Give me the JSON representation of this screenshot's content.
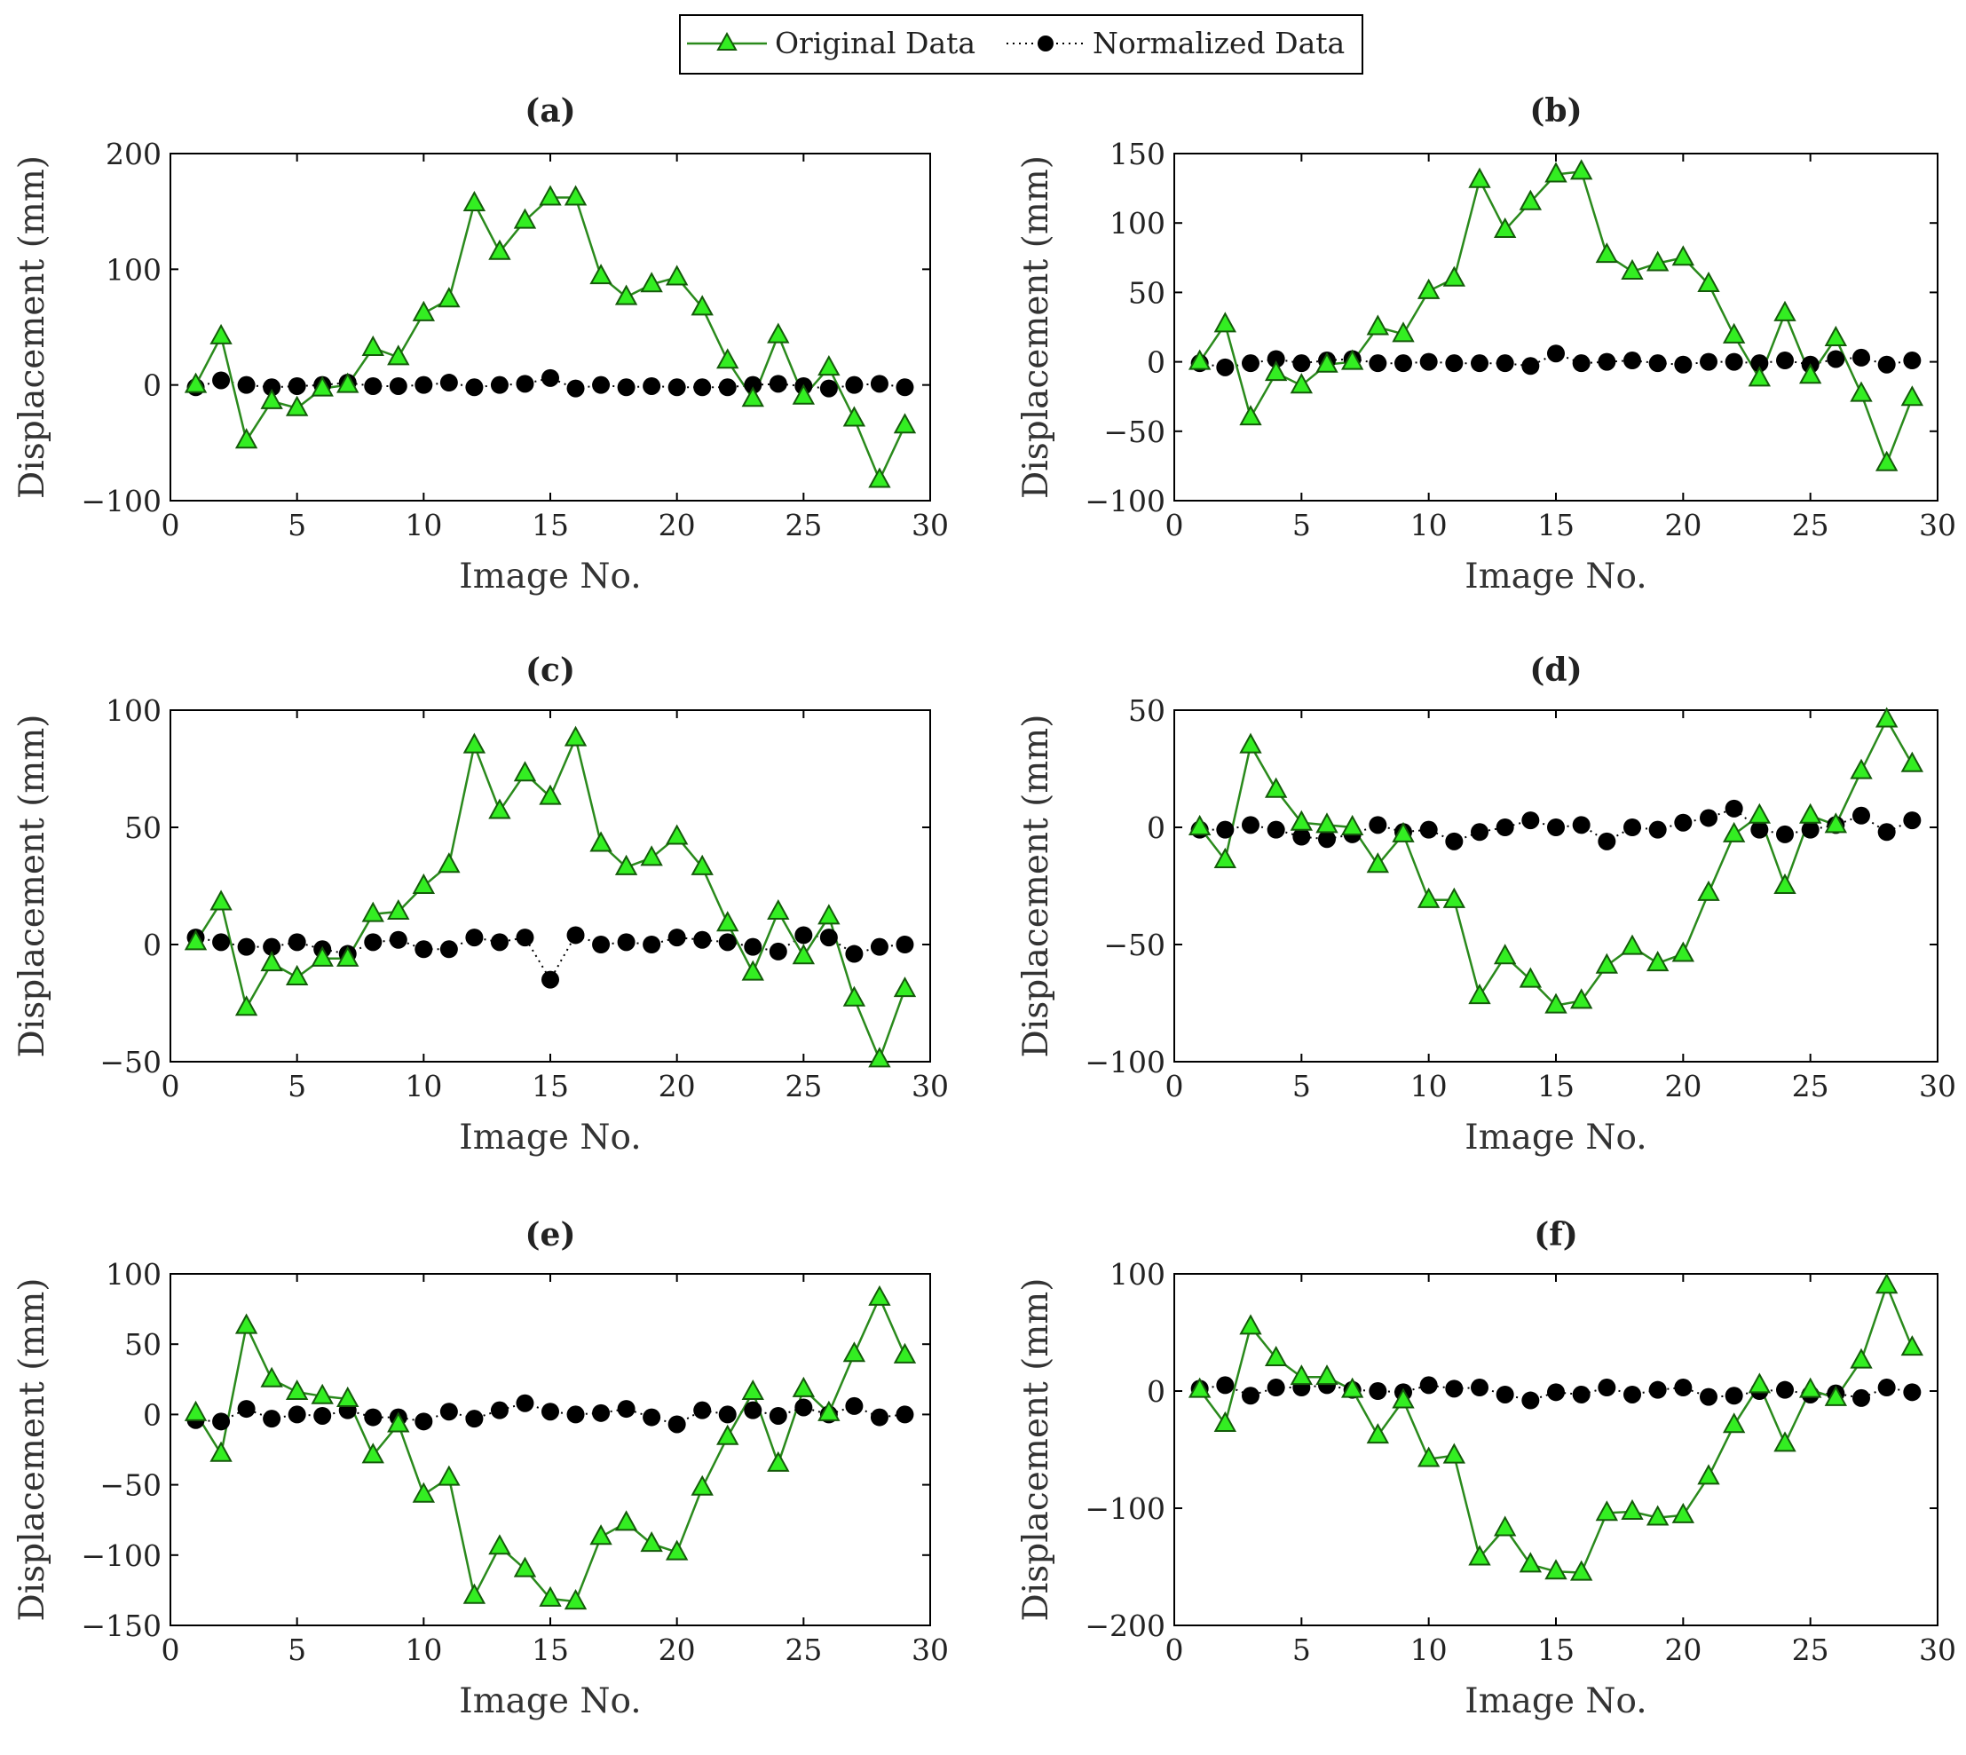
{
  "legend": {
    "original_label": "Original Data",
    "normalized_label": "Normalized Data"
  },
  "colors": {
    "original_line": "#2a8a1c",
    "original_marker_fill": "#33ee22",
    "original_marker_stroke": "#145a0a",
    "normalized": "#000000",
    "axis": "#000000"
  },
  "chart_data": [
    {
      "type": "line",
      "title": "(a)",
      "xlabel": "Image No.",
      "ylabel": "Displacement (mm)",
      "xlim": [
        0,
        30
      ],
      "ylim": [
        -100,
        200
      ],
      "xticks": [
        0,
        5,
        10,
        15,
        20,
        25,
        30
      ],
      "yticks": [
        -100,
        0,
        100,
        200
      ],
      "x": [
        1,
        2,
        3,
        4,
        5,
        6,
        7,
        8,
        9,
        10,
        11,
        12,
        13,
        14,
        15,
        16,
        17,
        18,
        19,
        20,
        21,
        22,
        23,
        24,
        25,
        26,
        27,
        28,
        29
      ],
      "series": [
        {
          "name": "Original Data",
          "values": [
            0,
            42,
            -48,
            -14,
            -20,
            -3,
            0,
            32,
            24,
            62,
            74,
            157,
            115,
            142,
            162,
            162,
            94,
            76,
            87,
            93,
            67,
            21,
            -12,
            43,
            -10,
            15,
            -29,
            -82,
            -35
          ]
        },
        {
          "name": "Normalized Data",
          "values": [
            -2,
            4,
            0,
            -2,
            -1,
            0,
            2,
            -1,
            -1,
            0,
            2,
            -2,
            0,
            1,
            6,
            -3,
            0,
            -2,
            -1,
            -2,
            -2,
            -2,
            0,
            1,
            -1,
            -3,
            0,
            1,
            -2
          ]
        }
      ]
    },
    {
      "type": "line",
      "title": "(b)",
      "xlabel": "Image No.",
      "ylabel": "Displacement (mm)",
      "xlim": [
        0,
        30
      ],
      "ylim": [
        -100,
        150
      ],
      "xticks": [
        0,
        5,
        10,
        15,
        20,
        25,
        30
      ],
      "yticks": [
        -100,
        -50,
        0,
        50,
        100,
        150
      ],
      "x": [
        1,
        2,
        3,
        4,
        5,
        6,
        7,
        8,
        9,
        10,
        11,
        12,
        13,
        14,
        15,
        16,
        17,
        18,
        19,
        20,
        21,
        22,
        23,
        24,
        25,
        26,
        27,
        28,
        29
      ],
      "series": [
        {
          "name": "Original Data",
          "values": [
            0,
            27,
            -40,
            -8,
            -17,
            -2,
            0,
            25,
            20,
            51,
            60,
            131,
            95,
            115,
            135,
            137,
            77,
            65,
            71,
            75,
            56,
            19,
            -12,
            35,
            -10,
            17,
            -23,
            -73,
            -26
          ]
        },
        {
          "name": "Normalized Data",
          "values": [
            -1,
            -4,
            -1,
            2,
            -1,
            1,
            2,
            -1,
            -1,
            0,
            -1,
            -1,
            -1,
            -3,
            6,
            -1,
            0,
            1,
            -1,
            -2,
            0,
            0,
            -1,
            1,
            -2,
            2,
            3,
            -2,
            1
          ]
        }
      ]
    },
    {
      "type": "line",
      "title": "(c)",
      "xlabel": "Image No.",
      "ylabel": "Displacement (mm)",
      "xlim": [
        0,
        30
      ],
      "ylim": [
        -50,
        100
      ],
      "xticks": [
        0,
        5,
        10,
        15,
        20,
        25,
        30
      ],
      "yticks": [
        -50,
        0,
        50,
        100
      ],
      "x": [
        1,
        2,
        3,
        4,
        5,
        6,
        7,
        8,
        9,
        10,
        11,
        12,
        13,
        14,
        15,
        16,
        17,
        18,
        19,
        20,
        21,
        22,
        23,
        24,
        25,
        26,
        27,
        28,
        29
      ],
      "series": [
        {
          "name": "Original Data",
          "values": [
            1,
            18,
            -27,
            -8,
            -14,
            -6,
            -6,
            13,
            14,
            25,
            34,
            85,
            57,
            73,
            63,
            88,
            43,
            33,
            37,
            46,
            33,
            9,
            -12,
            14,
            -5,
            12,
            -23,
            -49,
            -19
          ]
        },
        {
          "name": "Normalized Data",
          "values": [
            3,
            1,
            -1,
            -1,
            1,
            -2,
            -4,
            1,
            2,
            -2,
            -2,
            3,
            1,
            3,
            -15,
            4,
            0,
            1,
            0,
            3,
            2,
            1,
            -1,
            -3,
            4,
            3,
            -4,
            -1,
            0
          ]
        }
      ]
    },
    {
      "type": "line",
      "title": "(d)",
      "xlabel": "Image No.",
      "ylabel": "Displacement (mm)",
      "xlim": [
        0,
        30
      ],
      "ylim": [
        -100,
        50
      ],
      "xticks": [
        0,
        5,
        10,
        15,
        20,
        25,
        30
      ],
      "yticks": [
        -100,
        -50,
        0,
        50
      ],
      "x": [
        1,
        2,
        3,
        4,
        5,
        6,
        7,
        8,
        9,
        10,
        11,
        12,
        13,
        14,
        15,
        16,
        17,
        18,
        19,
        20,
        21,
        22,
        23,
        24,
        25,
        26,
        27,
        28,
        29
      ],
      "series": [
        {
          "name": "Original Data",
          "values": [
            0,
            -14,
            35,
            16,
            2,
            1,
            0,
            -16,
            -3,
            -31,
            -31,
            -72,
            -55,
            -65,
            -76,
            -74,
            -59,
            -51,
            -58,
            -54,
            -28,
            -3,
            5,
            -25,
            5,
            1,
            24,
            46,
            27
          ]
        },
        {
          "name": "Normalized Data",
          "values": [
            -1,
            -1,
            1,
            -1,
            -4,
            -5,
            -3,
            1,
            -2,
            -1,
            -6,
            -2,
            0,
            3,
            0,
            1,
            -6,
            0,
            -1,
            2,
            4,
            8,
            -1,
            -3,
            -1,
            1,
            5,
            -2,
            3
          ]
        }
      ]
    },
    {
      "type": "line",
      "title": "(e)",
      "xlabel": "Image No.",
      "ylabel": "Displacement (mm)",
      "xlim": [
        0,
        30
      ],
      "ylim": [
        -150,
        100
      ],
      "xticks": [
        0,
        5,
        10,
        15,
        20,
        25,
        30
      ],
      "yticks": [
        -150,
        -100,
        -50,
        0,
        50,
        100
      ],
      "x": [
        1,
        2,
        3,
        4,
        5,
        6,
        7,
        8,
        9,
        10,
        11,
        12,
        13,
        14,
        15,
        16,
        17,
        18,
        19,
        20,
        21,
        22,
        23,
        24,
        25,
        26,
        27,
        28,
        29
      ],
      "series": [
        {
          "name": "Original Data",
          "values": [
            1,
            -28,
            63,
            25,
            16,
            13,
            11,
            -29,
            -7,
            -57,
            -45,
            -129,
            -94,
            -110,
            -131,
            -133,
            -87,
            -77,
            -92,
            -98,
            -52,
            -16,
            16,
            -35,
            18,
            1,
            43,
            83,
            42
          ]
        },
        {
          "name": "Normalized Data",
          "values": [
            -4,
            -5,
            4,
            -3,
            0,
            -1,
            3,
            -2,
            -2,
            -5,
            2,
            -3,
            3,
            8,
            2,
            0,
            1,
            4,
            -2,
            -7,
            3,
            0,
            3,
            -1,
            5,
            0,
            6,
            -2,
            0
          ]
        }
      ]
    },
    {
      "type": "line",
      "title": "(f)",
      "xlabel": "Image No.",
      "ylabel": "Displacement (mm)",
      "xlim": [
        0,
        30
      ],
      "ylim": [
        -200,
        100
      ],
      "xticks": [
        0,
        5,
        10,
        15,
        20,
        25,
        30
      ],
      "yticks": [
        -200,
        -100,
        0,
        100
      ],
      "x": [
        1,
        2,
        3,
        4,
        5,
        6,
        7,
        8,
        9,
        10,
        11,
        12,
        13,
        14,
        15,
        16,
        17,
        18,
        19,
        20,
        21,
        22,
        23,
        24,
        25,
        26,
        27,
        28,
        29
      ],
      "series": [
        {
          "name": "Original Data",
          "values": [
            1,
            -28,
            55,
            28,
            12,
            12,
            1,
            -38,
            -8,
            -58,
            -55,
            -142,
            -117,
            -148,
            -154,
            -155,
            -104,
            -103,
            -108,
            -106,
            -73,
            -29,
            5,
            -45,
            1,
            -6,
            26,
            90,
            37
          ]
        },
        {
          "name": "Normalized Data",
          "values": [
            2,
            5,
            -4,
            3,
            3,
            5,
            1,
            0,
            -1,
            5,
            2,
            3,
            -3,
            -8,
            -1,
            -3,
            3,
            -3,
            1,
            3,
            -5,
            -4,
            0,
            1,
            -3,
            -2,
            -6,
            3,
            -1
          ]
        }
      ]
    }
  ]
}
